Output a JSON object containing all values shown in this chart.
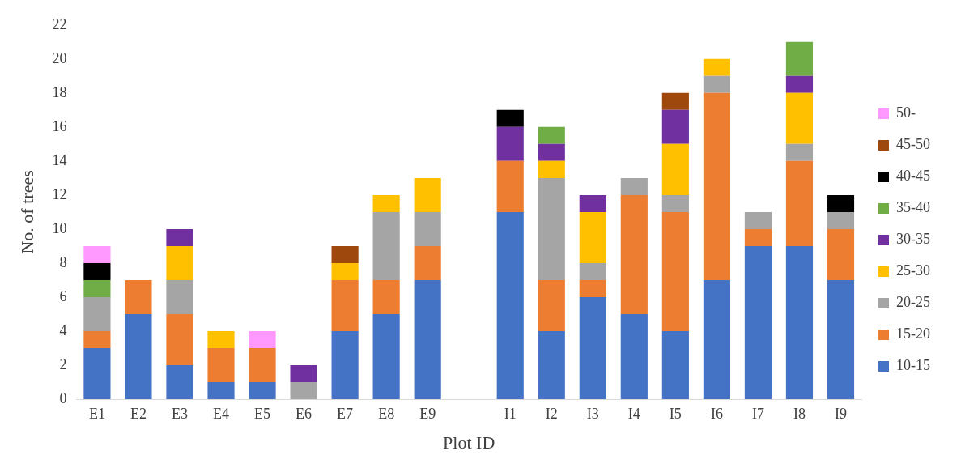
{
  "chart_data": {
    "type": "bar",
    "stacked": true,
    "xlabel": "Plot ID",
    "ylabel": "No. of trees",
    "categories": [
      "E1",
      "E2",
      "E3",
      "E4",
      "E5",
      "E6",
      "E7",
      "E8",
      "E9",
      null,
      "I1",
      "I2",
      "I3",
      "I4",
      "I5",
      "I6",
      "I7",
      "I8",
      "I9"
    ],
    "ylim": [
      0,
      22
    ],
    "yticks": [
      0,
      2,
      4,
      6,
      8,
      10,
      12,
      14,
      16,
      18,
      20,
      22
    ],
    "grid": false,
    "legend": "right",
    "series": [
      {
        "name": "10-15",
        "color": "#4472c4",
        "values": [
          3,
          5,
          2,
          1,
          1,
          0,
          4,
          5,
          7,
          null,
          11,
          4,
          6,
          5,
          4,
          7,
          9,
          9,
          7
        ]
      },
      {
        "name": "15-20",
        "color": "#ed7d31",
        "values": [
          1,
          2,
          3,
          2,
          2,
          0,
          3,
          2,
          2,
          null,
          3,
          3,
          1,
          7,
          7,
          11,
          1,
          5,
          3
        ]
      },
      {
        "name": "20-25",
        "color": "#a5a5a5",
        "values": [
          2,
          0,
          2,
          0,
          0,
          1,
          0,
          4,
          2,
          null,
          0,
          6,
          1,
          1,
          1,
          1,
          1,
          1,
          1
        ]
      },
      {
        "name": "25-30",
        "color": "#ffc000",
        "values": [
          0,
          0,
          2,
          1,
          0,
          0,
          1,
          1,
          2,
          null,
          0,
          1,
          3,
          0,
          3,
          1,
          0,
          3,
          0
        ]
      },
      {
        "name": "30-35",
        "color": "#7030a0",
        "values": [
          0,
          0,
          1,
          0,
          0,
          1,
          0,
          0,
          0,
          null,
          2,
          1,
          1,
          0,
          2,
          0,
          0,
          1,
          0
        ]
      },
      {
        "name": "35-40",
        "color": "#70ad47",
        "values": [
          1,
          0,
          0,
          0,
          0,
          0,
          0,
          0,
          0,
          null,
          0,
          1,
          0,
          0,
          0,
          0,
          0,
          2,
          0
        ]
      },
      {
        "name": "40-45",
        "color": "#000000",
        "values": [
          1,
          0,
          0,
          0,
          0,
          0,
          0,
          0,
          0,
          null,
          1,
          0,
          0,
          0,
          0,
          0,
          0,
          0,
          1
        ]
      },
      {
        "name": "45-50",
        "color": "#9e480e",
        "values": [
          0,
          0,
          0,
          0,
          0,
          0,
          1,
          0,
          0,
          null,
          0,
          0,
          0,
          0,
          1,
          0,
          0,
          0,
          0
        ]
      },
      {
        "name": "50-",
        "color": "#ff99ff",
        "values": [
          1,
          0,
          0,
          0,
          1,
          0,
          0,
          0,
          0,
          null,
          0,
          0,
          0,
          0,
          0,
          0,
          0,
          0,
          0
        ]
      }
    ]
  }
}
